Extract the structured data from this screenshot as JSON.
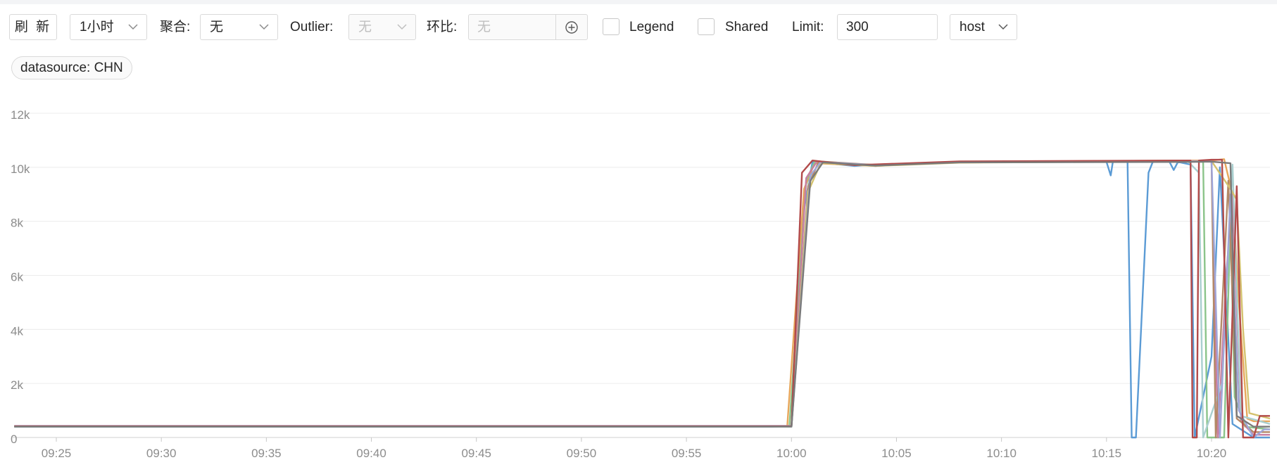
{
  "toolbar": {
    "refresh_label": "刷 新",
    "time_range": "1小时",
    "aggregate_label": "聚合:",
    "aggregate_value": "无",
    "outlier_label": "Outlier:",
    "outlier_value": "无",
    "ratio_label": "环比:",
    "ratio_placeholder": "无",
    "legend_label": "Legend",
    "shared_label": "Shared",
    "limit_label": "Limit:",
    "limit_value": "300",
    "group_by": "host",
    "icons": [
      "chevron-down-icon",
      "add-circle-icon"
    ]
  },
  "filters": {
    "datasource_tag": "datasource: CHN"
  },
  "chart_data": {
    "type": "line",
    "title": "",
    "xlabel": "",
    "ylabel": "",
    "grid": true,
    "legend": "none",
    "ylim": [
      0,
      12000
    ],
    "y_ticks": [
      0,
      2000,
      4000,
      6000,
      8000,
      10000,
      12000
    ],
    "y_tick_labels": [
      "0",
      "2k",
      "4k",
      "6k",
      "8k",
      "10k",
      "12k"
    ],
    "x_range": [
      "09:23",
      "10:23"
    ],
    "x_ticks": [
      "09:25",
      "09:30",
      "09:35",
      "09:40",
      "09:45",
      "09:50",
      "09:55",
      "10:00",
      "10:05",
      "10:10",
      "10:15",
      "10:20"
    ],
    "series_colors": [
      "#5b9bd5",
      "#e7a75b",
      "#8bc48a",
      "#c97ea0",
      "#a9cfcf",
      "#b38867",
      "#d4c26e",
      "#9fa6d9",
      "#b24a4a",
      "#7a7a7a"
    ],
    "series": [
      {
        "color": "#5b9bd5",
        "points": [
          [
            "09:23",
            400
          ],
          [
            "09:59",
            400
          ],
          [
            "10:00",
            420
          ],
          [
            "10:00.5",
            8000
          ],
          [
            "10:01",
            10200
          ],
          [
            "10:03",
            10050
          ],
          [
            "10:04",
            10100
          ],
          [
            "10:08",
            10200
          ],
          [
            "10:15",
            10200
          ],
          [
            "10:15.2",
            9700
          ],
          [
            "10:15.3",
            10200
          ],
          [
            "10:16",
            10200
          ],
          [
            "10:16.2",
            0
          ],
          [
            "10:16.4",
            0
          ],
          [
            "10:17",
            9800
          ],
          [
            "10:17.2",
            10200
          ],
          [
            "10:18",
            10200
          ],
          [
            "10:18.2",
            9900
          ],
          [
            "10:18.4",
            10200
          ],
          [
            "10:19",
            10100
          ],
          [
            "10:19.2",
            0
          ],
          [
            "10:20",
            3000
          ],
          [
            "10:20.4",
            10000
          ],
          [
            "10:21",
            500
          ],
          [
            "10:22",
            0
          ],
          [
            "10:23",
            0
          ]
        ]
      },
      {
        "color": "#e7a75b",
        "points": [
          [
            "09:23",
            420
          ],
          [
            "09:59.8",
            420
          ],
          [
            "10:00.6",
            9200
          ],
          [
            "10:01.1",
            10150
          ],
          [
            "10:04",
            10050
          ],
          [
            "10:08",
            10200
          ],
          [
            "10:19",
            10250
          ],
          [
            "10:20",
            10250
          ],
          [
            "10:20.6",
            10300
          ],
          [
            "10:21",
            9000
          ],
          [
            "10:21.3",
            5000
          ],
          [
            "10:21.7",
            700
          ],
          [
            "10:22",
            600
          ],
          [
            "10:23",
            600
          ]
        ]
      },
      {
        "color": "#8bc48a",
        "points": [
          [
            "09:23",
            410
          ],
          [
            "09:59.9",
            410
          ],
          [
            "10:00.7",
            9500
          ],
          [
            "10:01.1",
            10200
          ],
          [
            "10:04",
            10080
          ],
          [
            "10:08",
            10180
          ],
          [
            "10:19",
            10220
          ],
          [
            "10:19.6",
            10200
          ],
          [
            "10:19.8",
            0
          ],
          [
            "10:20.6",
            0
          ],
          [
            "10:20.9",
            8000
          ],
          [
            "10:21.1",
            1500
          ],
          [
            "10:21.6",
            400
          ],
          [
            "10:23",
            300
          ]
        ]
      },
      {
        "color": "#c97ea0",
        "points": [
          [
            "09:23",
            430
          ],
          [
            "10:00",
            430
          ],
          [
            "10:00.7",
            9600
          ],
          [
            "10:01.2",
            10200
          ],
          [
            "10:04",
            10060
          ],
          [
            "10:08",
            10210
          ],
          [
            "10:19",
            10230
          ],
          [
            "10:20",
            10230
          ],
          [
            "10:20.3",
            0
          ],
          [
            "10:20.7",
            6000
          ],
          [
            "10:21",
            9000
          ],
          [
            "10:21.4",
            600
          ],
          [
            "10:22",
            100
          ],
          [
            "10:23",
            100
          ]
        ]
      },
      {
        "color": "#a9cfcf",
        "points": [
          [
            "09:23",
            400
          ],
          [
            "10:00",
            400
          ],
          [
            "10:00.8",
            9400
          ],
          [
            "10:01.3",
            10180
          ],
          [
            "10:04",
            10070
          ],
          [
            "10:08",
            10190
          ],
          [
            "10:18",
            10200
          ],
          [
            "10:18.9",
            10200
          ],
          [
            "10:19.4",
            9800
          ],
          [
            "10:19.6",
            0
          ],
          [
            "10:20.5",
            2000
          ],
          [
            "10:21",
            10100
          ],
          [
            "10:21.4",
            800
          ],
          [
            "10:23",
            500
          ]
        ]
      },
      {
        "color": "#b38867",
        "points": [
          [
            "09:23",
            420
          ],
          [
            "10:00",
            420
          ],
          [
            "10:00.8",
            9300
          ],
          [
            "10:01.3",
            10220
          ],
          [
            "10:04",
            10090
          ],
          [
            "10:08",
            10200
          ],
          [
            "10:19",
            10210
          ],
          [
            "10:20",
            10250
          ],
          [
            "10:20.2",
            0
          ],
          [
            "10:20.8",
            9500
          ],
          [
            "10:21.2",
            700
          ],
          [
            "10:22",
            200
          ],
          [
            "10:23",
            200
          ]
        ]
      },
      {
        "color": "#d4c26e",
        "points": [
          [
            "09:23",
            410
          ],
          [
            "10:00",
            410
          ],
          [
            "10:00.8",
            9100
          ],
          [
            "10:01.4",
            10160
          ],
          [
            "10:04",
            10050
          ],
          [
            "10:08",
            10170
          ],
          [
            "10:19",
            10220
          ],
          [
            "10:20",
            10230
          ],
          [
            "10:20.9",
            9200
          ],
          [
            "10:21.2",
            8800
          ],
          [
            "10:21.5",
            4000
          ],
          [
            "10:21.8",
            900
          ],
          [
            "10:23",
            700
          ]
        ]
      },
      {
        "color": "#9fa6d9",
        "points": [
          [
            "09:23",
            420
          ],
          [
            "10:00",
            420
          ],
          [
            "10:00.9",
            9700
          ],
          [
            "10:01.4",
            10200
          ],
          [
            "10:04",
            10080
          ],
          [
            "10:08",
            10200
          ],
          [
            "10:19",
            10220
          ],
          [
            "10:20",
            10220
          ],
          [
            "10:20.4",
            0
          ],
          [
            "10:20.9",
            9000
          ],
          [
            "10:21.3",
            1000
          ],
          [
            "10:22",
            0
          ],
          [
            "10:22.5",
            300
          ],
          [
            "10:23",
            300
          ]
        ]
      },
      {
        "color": "#b24a4a",
        "points": [
          [
            "09:23",
            410
          ],
          [
            "10:00",
            410
          ],
          [
            "10:00.5",
            9800
          ],
          [
            "10:01",
            10250
          ],
          [
            "10:03",
            10080
          ],
          [
            "10:08",
            10220
          ],
          [
            "10:19",
            10250
          ],
          [
            "10:19.1",
            0
          ],
          [
            "10:19.3",
            0
          ],
          [
            "10:19.4",
            10250
          ],
          [
            "10:20",
            10280
          ],
          [
            "10:20.5",
            10280
          ],
          [
            "10:20.8",
            0
          ],
          [
            "10:21.2",
            9300
          ],
          [
            "10:21.5",
            0
          ],
          [
            "10:22",
            0
          ],
          [
            "10:22.3",
            800
          ],
          [
            "10:23",
            800
          ]
        ]
      },
      {
        "color": "#7a7a7a",
        "points": [
          [
            "09:23",
            400
          ],
          [
            "10:00",
            400
          ],
          [
            "10:00.9",
            9500
          ],
          [
            "10:01.5",
            10180
          ],
          [
            "10:04",
            10060
          ],
          [
            "10:08",
            10180
          ],
          [
            "10:19",
            10200
          ],
          [
            "10:20",
            10210
          ],
          [
            "10:20.9",
            10150
          ],
          [
            "10:21.2",
            800
          ],
          [
            "10:22",
            400
          ],
          [
            "10:23",
            400
          ]
        ]
      }
    ]
  }
}
